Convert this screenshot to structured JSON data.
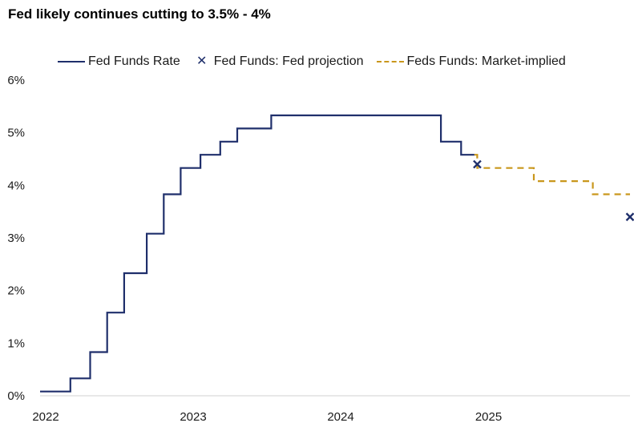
{
  "title": "Fed likely continues cutting to 3.5% - 4%",
  "colors": {
    "actual": "#1f2f6b",
    "projection": "#1f2f6b",
    "market": "#c9971c",
    "axis": "#d0d0d0"
  },
  "chart_data": {
    "type": "line",
    "title": "Fed likely continues cutting to 3.5% - 4%",
    "xlabel": "",
    "ylabel": "",
    "xlim": [
      "2022-01-01",
      "2025-12-31"
    ],
    "ylim": [
      0,
      6
    ],
    "grid": false,
    "legend_position": "top",
    "x_tick_labels": [
      "2022",
      "2023",
      "2024",
      "2025"
    ],
    "y_tick_labels": [
      "0%",
      "1%",
      "2%",
      "3%",
      "4%",
      "5%",
      "6%"
    ],
    "series": [
      {
        "name": "Fed Funds Rate",
        "style": "step-solid",
        "points": [
          [
            "2022-01-01",
            0.08
          ],
          [
            "2022-03-17",
            0.33
          ],
          [
            "2022-05-05",
            0.83
          ],
          [
            "2022-06-16",
            1.58
          ],
          [
            "2022-07-28",
            2.33
          ],
          [
            "2022-09-22",
            3.08
          ],
          [
            "2022-11-03",
            3.83
          ],
          [
            "2022-12-15",
            4.33
          ],
          [
            "2023-02-02",
            4.58
          ],
          [
            "2023-03-23",
            4.83
          ],
          [
            "2023-05-04",
            5.08
          ],
          [
            "2023-07-27",
            5.33
          ],
          [
            "2024-09-19",
            4.83
          ],
          [
            "2024-11-08",
            4.58
          ],
          [
            "2024-12-11",
            4.58
          ]
        ]
      },
      {
        "name": "Fed Funds: Fed projection",
        "style": "marker-x",
        "points": [
          [
            "2024-12-18",
            4.4
          ],
          [
            "2025-12-31",
            3.4
          ]
        ]
      },
      {
        "name": "Feds Funds: Market-implied",
        "style": "step-dashed",
        "points": [
          [
            "2024-12-11",
            4.58
          ],
          [
            "2024-12-18",
            4.33
          ],
          [
            "2025-03-19",
            4.33
          ],
          [
            "2025-05-07",
            4.08
          ],
          [
            "2025-09-17",
            4.08
          ],
          [
            "2025-09-30",
            3.83
          ],
          [
            "2025-12-31",
            3.83
          ]
        ]
      }
    ]
  }
}
